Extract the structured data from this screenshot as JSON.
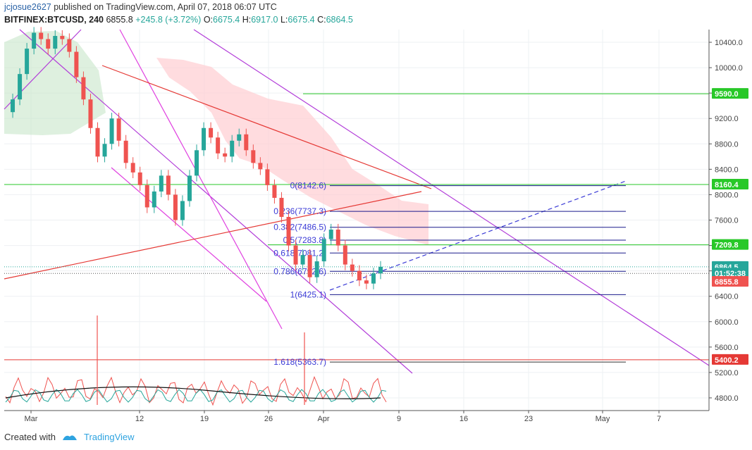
{
  "header": {
    "username": "jcjosue2627",
    "published_text": "published on TradingView.com, April 07, 2018 06:07 UTC"
  },
  "symbol_line": {
    "symbol": "BITFINEX:BTCUSD, 240",
    "last": "6855.8",
    "change": "+245.8 (+3.72%)",
    "open_label": "O:",
    "open": "6675.4",
    "high_label": "H:",
    "high": "6917.0",
    "low_label": "L:",
    "low": "6675.4",
    "close_label": "C:",
    "close": "6864.5"
  },
  "footer": {
    "created_with": "Created with",
    "brand": "TradingView"
  },
  "colors": {
    "up": "#26a69a",
    "down": "#ef5350",
    "fib": "#3b3bd6",
    "channel": "#b23cd9",
    "pink_channel": "#e040e0",
    "trend_red": "#e53935",
    "level_green": "#28c828",
    "cloud_green": "#c8e6c9",
    "cloud_red": "#ffcdd2"
  },
  "chart_data": {
    "type": "candlestick",
    "x_ticks": [
      "Mar",
      "12",
      "19",
      "26",
      "Apr",
      "9",
      "16",
      "23",
      "May",
      "7"
    ],
    "y_ticks": [
      "10400.0",
      "10000.0",
      "9600.0",
      "9200.0",
      "8800.0",
      "8400.0",
      "8000.0",
      "7600.0",
      "7200.0",
      "6800.0",
      "6400.0",
      "6000.0",
      "5600.0",
      "5200.0",
      "4800.0"
    ],
    "y_range": [
      4600,
      10600
    ],
    "price_badges": [
      {
        "label": "9590.0",
        "value": 9590.0,
        "color": "#28c828"
      },
      {
        "label": "8160.4",
        "value": 8160.4,
        "color": "#28c828"
      },
      {
        "label": "7209.8",
        "value": 7209.8,
        "color": "#28c828"
      },
      {
        "label": "6864.5",
        "value": 6864.5,
        "color": "#26a69a"
      },
      {
        "label": "01:52:38",
        "value": 6760,
        "color": "#26a69a"
      },
      {
        "label": "6855.8",
        "value": 6630,
        "color": "#ef5350"
      },
      {
        "label": "5400.2",
        "value": 5400.2,
        "color": "#e53935"
      }
    ],
    "fibonacci": [
      {
        "label": "0(8142.6)",
        "value": 8142.6
      },
      {
        "label": "0.236(7737.3)",
        "value": 7737.3
      },
      {
        "label": "0.382(7486.5)",
        "value": 7486.5
      },
      {
        "label": "0.5(7283.8)",
        "value": 7283.8
      },
      {
        "label": "0.618(7081.2)",
        "value": 7081.2
      },
      {
        "label": "0.786(6792.6)",
        "value": 6792.6
      },
      {
        "label": "1(6425.1)",
        "value": 6425.1
      },
      {
        "label": "1.618(5363.7)",
        "value": 5363.7
      }
    ],
    "horizontal_levels": [
      {
        "value": 9590.0,
        "color": "#28c828"
      },
      {
        "value": 8160.4,
        "color": "#28c828"
      },
      {
        "value": 7209.8,
        "color": "#28c828"
      },
      {
        "value": 5400.2,
        "color": "#e53935"
      }
    ],
    "price_path": [
      [
        0,
        9300
      ],
      [
        1,
        9500
      ],
      [
        2,
        9900
      ],
      [
        3,
        10300
      ],
      [
        4,
        10550
      ],
      [
        5,
        10450
      ],
      [
        6,
        10300
      ],
      [
        7,
        10500
      ],
      [
        8,
        10450
      ],
      [
        9,
        10250
      ],
      [
        10,
        9850
      ],
      [
        11,
        9500
      ],
      [
        12,
        9050
      ],
      [
        13,
        8600
      ],
      [
        14,
        8800
      ],
      [
        15,
        9200
      ],
      [
        16,
        8850
      ],
      [
        17,
        8500
      ],
      [
        18,
        8350
      ],
      [
        19,
        8150
      ],
      [
        20,
        7800
      ],
      [
        21,
        8050
      ],
      [
        22,
        8300
      ],
      [
        23,
        8000
      ],
      [
        24,
        7600
      ],
      [
        25,
        7900
      ],
      [
        26,
        8300
      ],
      [
        27,
        8700
      ],
      [
        28,
        9050
      ],
      [
        29,
        8900
      ],
      [
        30,
        8650
      ],
      [
        31,
        8600
      ],
      [
        32,
        8850
      ],
      [
        33,
        8950
      ],
      [
        34,
        8700
      ],
      [
        35,
        8500
      ],
      [
        36,
        8400
      ],
      [
        37,
        8150
      ],
      [
        38,
        7950
      ],
      [
        39,
        7650
      ],
      [
        40,
        7200
      ],
      [
        41,
        6900
      ],
      [
        42,
        7050
      ],
      [
        43,
        6700
      ],
      [
        44,
        6950
      ],
      [
        45,
        7300
      ],
      [
        46,
        7450
      ],
      [
        47,
        7200
      ],
      [
        48,
        6900
      ],
      [
        49,
        6800
      ],
      [
        50,
        6650
      ],
      [
        51,
        6600
      ],
      [
        52,
        6760
      ],
      [
        53,
        6864
      ]
    ]
  }
}
